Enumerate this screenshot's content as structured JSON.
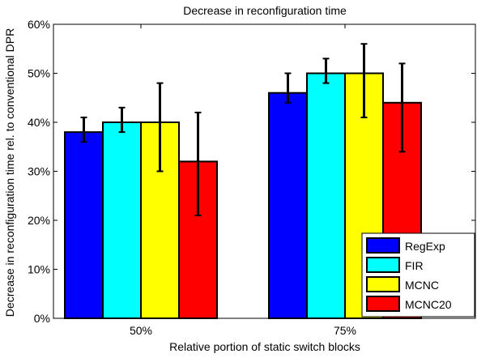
{
  "chart_data": {
    "type": "bar",
    "title": "Decrease in reconfiguration time",
    "xlabel": "Relative portion of static switch blocks",
    "ylabel": "Decrease in reconfiguration time rel. to conventional DPR",
    "categories": [
      "50%",
      "75%"
    ],
    "ylim": [
      0,
      60
    ],
    "yticks": [
      0,
      10,
      20,
      30,
      40,
      50,
      60
    ],
    "ytick_labels": [
      "0%",
      "10%",
      "20%",
      "30%",
      "40%",
      "50%",
      "60%"
    ],
    "grid": false,
    "legend_position": "bottom-right",
    "series": [
      {
        "name": "RegExp",
        "color": "#0000ff",
        "values": [
          38,
          46
        ],
        "err_low": [
          36,
          44
        ],
        "err_high": [
          41,
          50
        ]
      },
      {
        "name": "FIR",
        "color": "#00ffff",
        "values": [
          40,
          50
        ],
        "err_low": [
          38,
          48
        ],
        "err_high": [
          43,
          53
        ]
      },
      {
        "name": "MCNC",
        "color": "#ffff00",
        "values": [
          40,
          50
        ],
        "err_low": [
          30,
          41
        ],
        "err_high": [
          48,
          56
        ]
      },
      {
        "name": "MCNC20",
        "color": "#ff0000",
        "values": [
          32,
          44
        ],
        "err_low": [
          21,
          34
        ],
        "err_high": [
          42,
          52
        ]
      }
    ]
  }
}
